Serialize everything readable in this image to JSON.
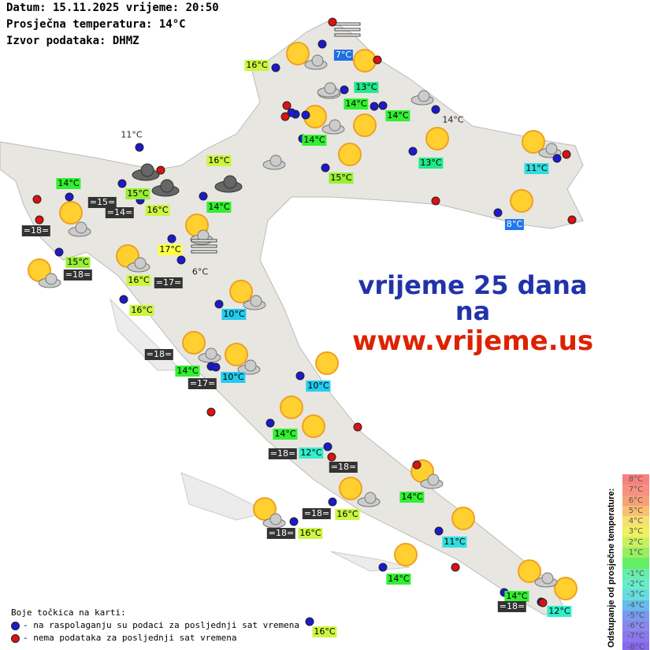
{
  "header": {
    "date_line": "Datum: 15.11.2025 vrijeme: 20:50",
    "avg_temp_line": "Prosječna temperatura: 14°C",
    "source_line": "Izvor podataka: DHMZ"
  },
  "promo": {
    "line1": "vrijeme 25 dana",
    "line2": "na",
    "line3": "www.vrijeme.us"
  },
  "station_labels": [
    "7°C",
    "16°C",
    "13°C",
    "14°C",
    "14°C",
    "14°C",
    "15°C",
    "13°C",
    "11°C",
    "8°C",
    "16°C",
    "14°C",
    "15°C",
    "=15=",
    "=14=",
    "16°C",
    "14°C",
    "=18=",
    "17°C",
    "15°C",
    "=18=",
    "16°C",
    "=17=",
    "16°C",
    "10°C",
    "=18=",
    "14°C",
    "10°C",
    "=17=",
    "10°C",
    "14°C",
    "=18=",
    "12°C",
    "=18=",
    "14°C",
    "=18=",
    "16°C",
    "=18=",
    "16°C",
    "11°C",
    "14°C",
    "14°C",
    "=18=",
    "12°C",
    "16°C"
  ],
  "plain_labels": [
    "11°C",
    "14°C",
    "6°C"
  ],
  "legend": {
    "title": "Boje točkica na karti:",
    "blue": "- na raspolaganju su podaci za posljednji sat vremena",
    "red": "- nema podataka za posljednji sat vremena",
    "blue_color": "#1a1ad0",
    "red_color": "#dd1111"
  },
  "deviation_scale": {
    "title": "Odstupanje od prosječne temperature:",
    "steps": [
      "8°C",
      "7°C",
      "6°C",
      "5°C",
      "4°C",
      "3°C",
      "2°C",
      "1°C",
      "",
      "-1°C",
      "-2°C",
      "-3°C",
      "-4°C",
      "-5°C",
      "-6°C",
      "-7°C",
      "-8°C"
    ]
  }
}
